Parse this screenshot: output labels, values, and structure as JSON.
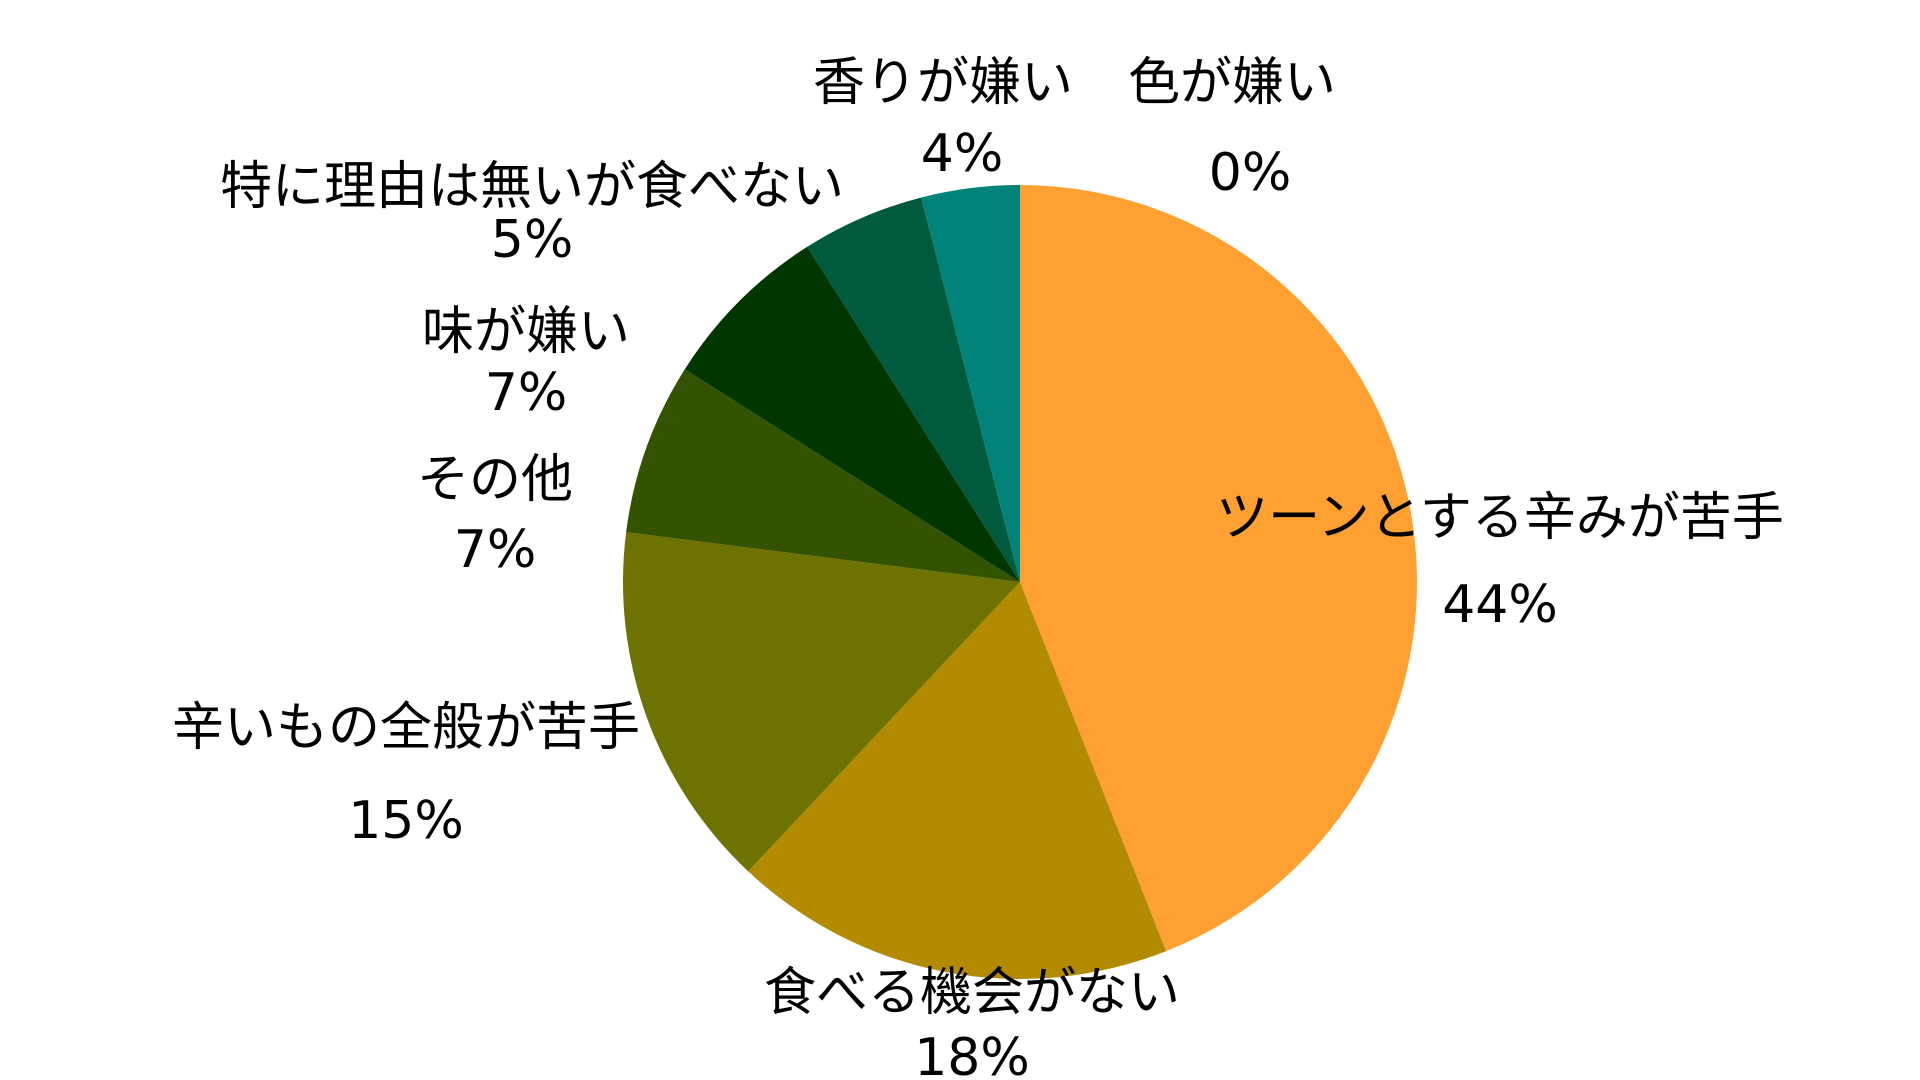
{
  "chart_data": {
    "type": "pie",
    "slices": [
      {
        "label": "ツーンとする辛みが苦手",
        "value": 44,
        "value_text": "44%",
        "color": "#FFA033"
      },
      {
        "label": "食べる機会がない",
        "value": 18,
        "value_text": "18%",
        "color": "#B38B00"
      },
      {
        "label": "辛いもの全般が苦手",
        "value": 15,
        "value_text": "15%",
        "color": "#6E7200"
      },
      {
        "label": "その他",
        "value": 7,
        "value_text": "7%",
        "color": "#345300"
      },
      {
        "label": "味が嫌い",
        "value": 7,
        "value_text": "7%",
        "color": "#003600"
      },
      {
        "label": "特に理由は無いが食べない",
        "value": 5,
        "value_text": "5%",
        "color": "#005A3D"
      },
      {
        "label": "香りが嫌い",
        "value": 4,
        "value_text": "4%",
        "color": "#00847A"
      },
      {
        "label": "色が嫌い",
        "value": 0,
        "value_text": "0%",
        "color": "#00847A"
      }
    ],
    "start_angle": "12 o'clock",
    "direction": "clockwise",
    "legend": "none (labels placed beside slices)"
  }
}
